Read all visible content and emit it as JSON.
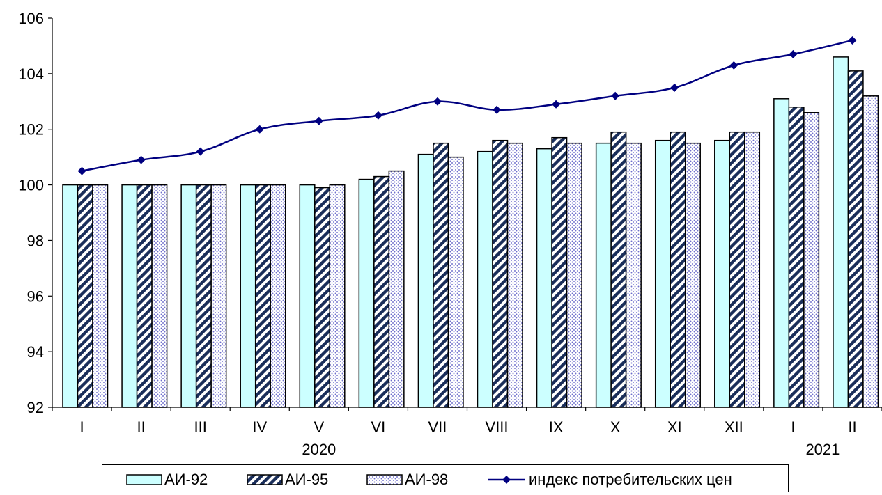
{
  "chart_data": {
    "type": "bar",
    "title": "",
    "xlabel": "",
    "ylabel": "",
    "ylim": [
      92,
      106
    ],
    "yticks": [
      92,
      94,
      96,
      98,
      100,
      102,
      104,
      106
    ],
    "categories": [
      "I",
      "II",
      "III",
      "IV",
      "V",
      "VI",
      "VII",
      "VIII",
      "IX",
      "X",
      "XI",
      "XII",
      "I",
      "II"
    ],
    "year_labels": [
      {
        "label": "2020",
        "category_index": 4
      },
      {
        "label": "2021",
        "category_index": 12.5
      }
    ],
    "grid": false,
    "legend_position": "bottom",
    "series": [
      {
        "name": "АИ-92",
        "type": "bar",
        "pattern": "solid",
        "color": "#ccffff",
        "values": [
          100.0,
          100.0,
          100.0,
          100.0,
          100.0,
          100.2,
          101.1,
          101.2,
          101.3,
          101.5,
          101.6,
          101.6,
          103.1,
          104.6
        ]
      },
      {
        "name": "АИ-95",
        "type": "bar",
        "pattern": "diagonal-stripes",
        "color": "#1a2e5a",
        "values": [
          100.0,
          100.0,
          100.0,
          100.0,
          99.9,
          100.3,
          101.5,
          101.6,
          101.7,
          101.9,
          101.9,
          101.9,
          102.8,
          104.1
        ]
      },
      {
        "name": "АИ-98",
        "type": "bar",
        "pattern": "dots",
        "color": "#6e6ecc",
        "values": [
          100.0,
          100.0,
          100.0,
          100.0,
          100.0,
          100.5,
          101.0,
          101.5,
          101.5,
          101.5,
          101.5,
          101.9,
          102.6,
          103.2
        ]
      },
      {
        "name": "индекс потребительских цен",
        "type": "line",
        "marker": "diamond",
        "color": "#000080",
        "values": [
          100.5,
          100.9,
          101.2,
          102.0,
          102.3,
          102.5,
          103.0,
          102.7,
          102.9,
          103.2,
          103.5,
          104.3,
          104.7,
          105.2
        ]
      }
    ]
  }
}
